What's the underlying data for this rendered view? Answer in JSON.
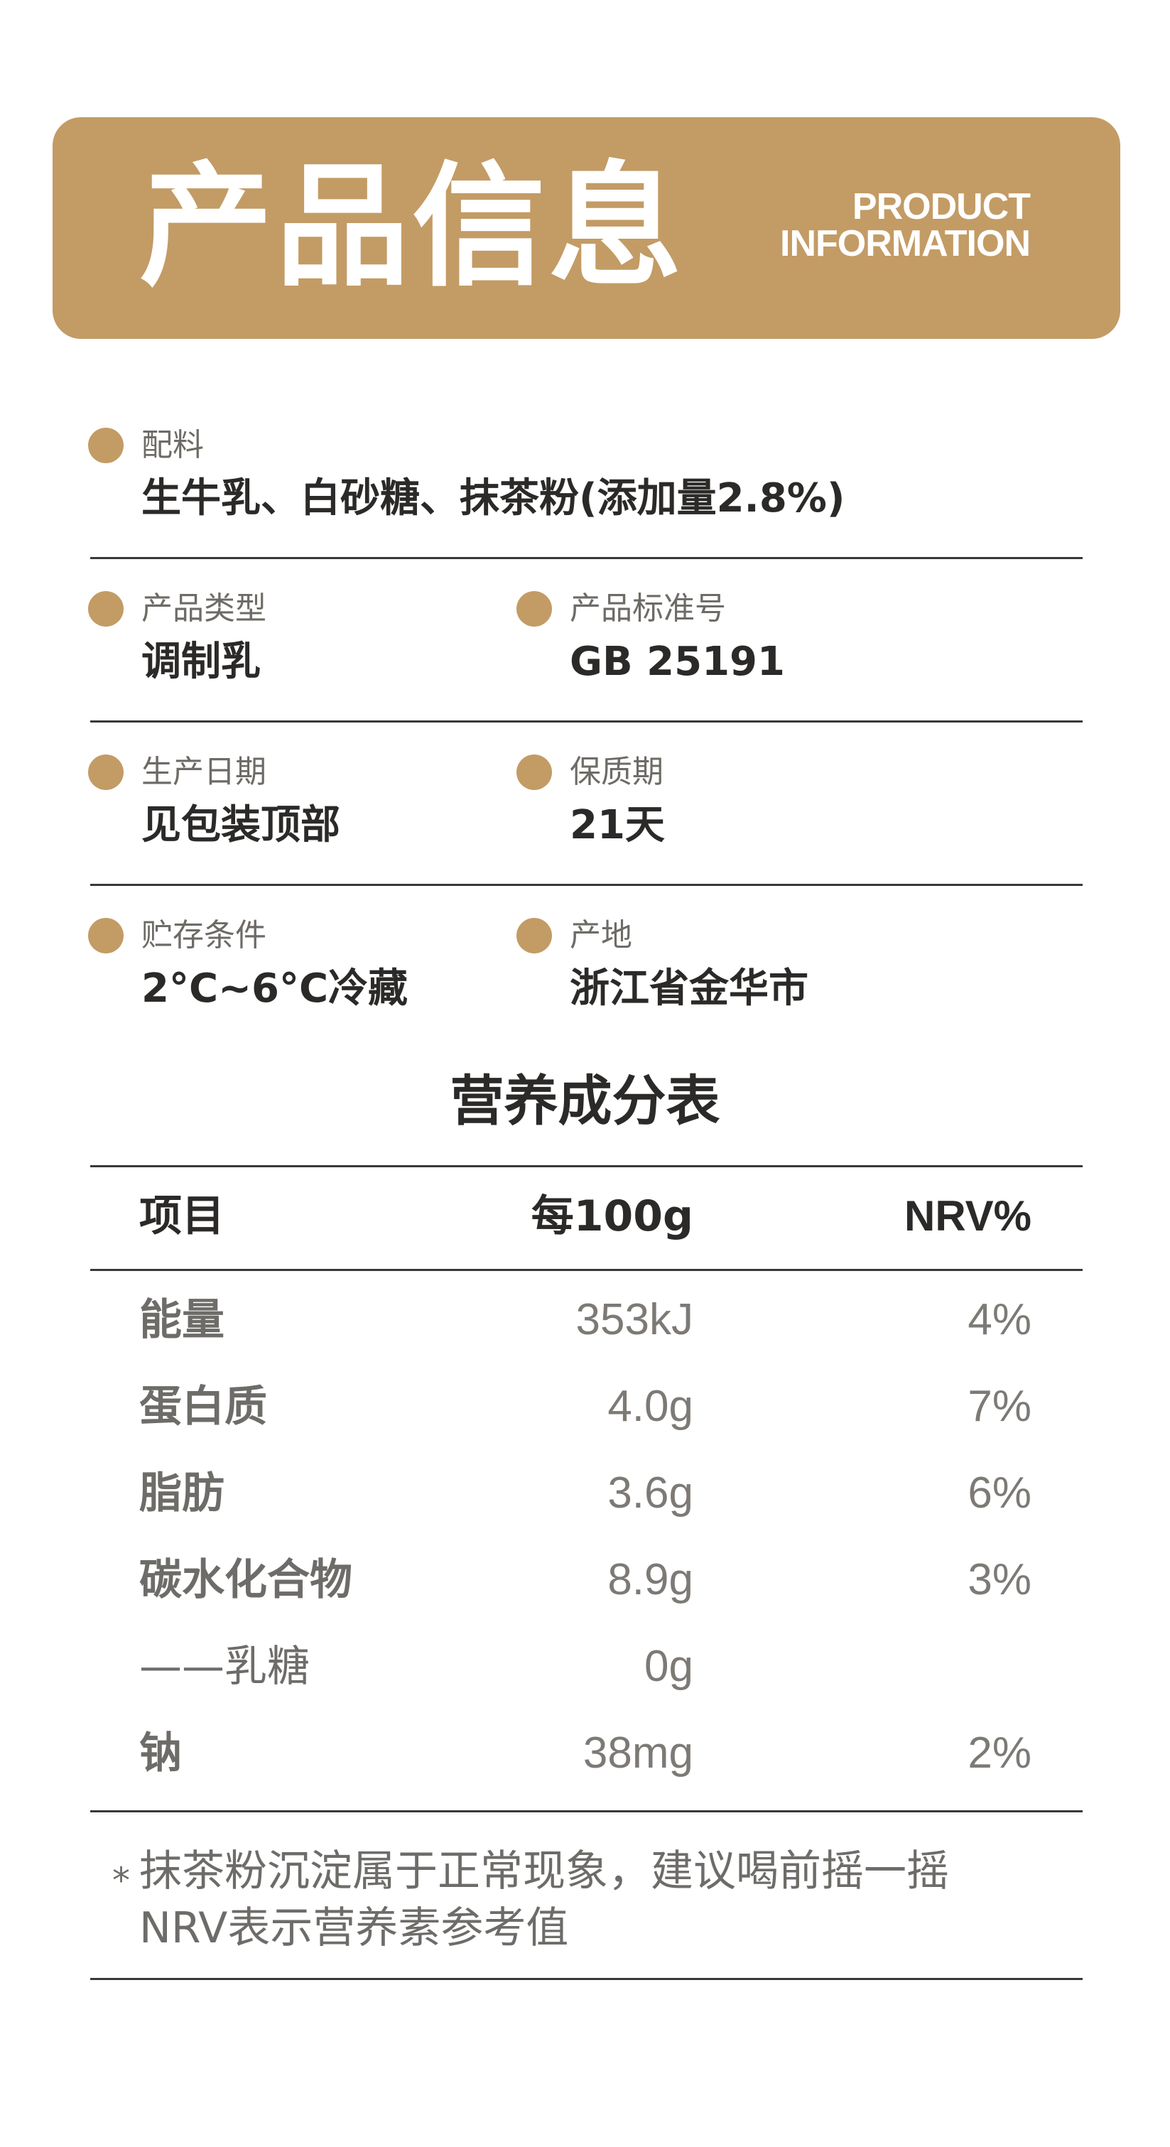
{
  "header": {
    "title": "产品信息",
    "subtitle_line1": "PRODUCT",
    "subtitle_line2": "INFORMATION"
  },
  "info": {
    "ingredients": {
      "label": "配料",
      "value": "生牛乳、白砂糖、抹茶粉(添加量2.8%)"
    },
    "product_type": {
      "label": "产品类型",
      "value": "调制乳"
    },
    "standard_no": {
      "label": "产品标准号",
      "value": "GB 25191"
    },
    "production_date": {
      "label": "生产日期",
      "value": "见包装顶部"
    },
    "shelf_life": {
      "label": "保质期",
      "value": "21天"
    },
    "storage": {
      "label": "贮存条件",
      "value": "2°C~6°C冷藏"
    },
    "origin": {
      "label": "产地",
      "value": "浙江省金华市"
    }
  },
  "nutrition": {
    "title": "营养成分表",
    "headers": {
      "item": "项目",
      "per100g": "每100g",
      "nrv": "NRV%"
    },
    "rows": [
      {
        "name": "能量",
        "amount": "353kJ",
        "nrv": "4%"
      },
      {
        "name": "蛋白质",
        "amount": "4.0g",
        "nrv": "7%"
      },
      {
        "name": "脂肪",
        "amount": "3.6g",
        "nrv": "6%"
      },
      {
        "name": "碳水化合物",
        "amount": "8.9g",
        "nrv": "3%"
      },
      {
        "name": "——乳糖",
        "amount": "0g",
        "nrv": ""
      },
      {
        "name": "钠",
        "amount": "38mg",
        "nrv": "2%"
      }
    ]
  },
  "footnote": {
    "star": "*",
    "line1": "抹茶粉沉淀属于正常现象，建议喝前摇一摇",
    "line2": "NRV表示营养素参考值"
  },
  "colors": {
    "accent": "#c39b65",
    "text_dark": "#2b2a28",
    "text_grey": "#6e6c69"
  }
}
